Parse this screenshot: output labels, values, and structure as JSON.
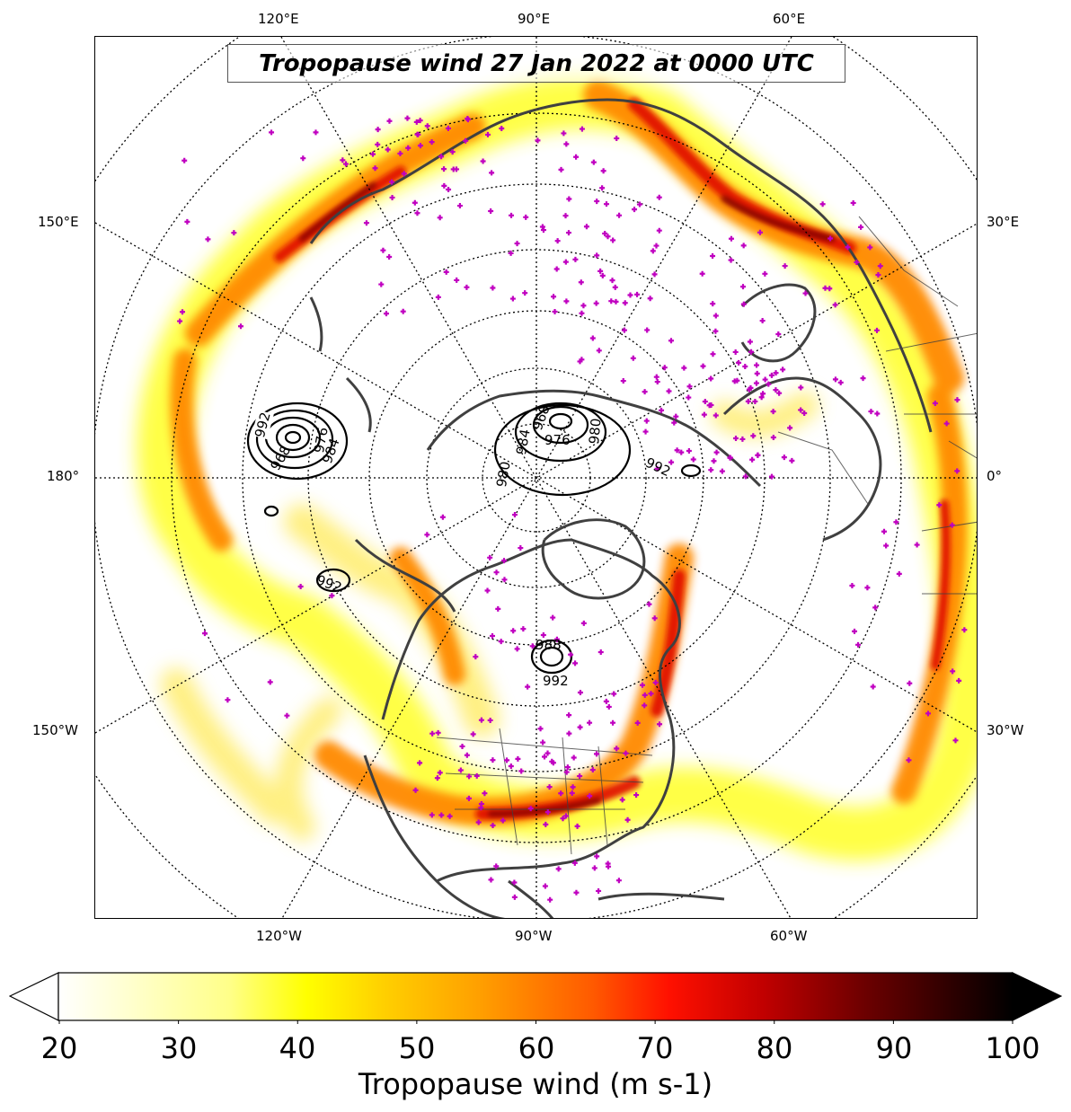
{
  "title": "Tropopause wind 27 Jan 2022 at 0000 UTC",
  "longitude_labels": {
    "top": [
      "120°E",
      "90°E",
      "60°E"
    ],
    "bottom": [
      "120°W",
      "90°W",
      "60°W"
    ],
    "left": [
      "150°E",
      "180°",
      "150°W"
    ],
    "right": [
      "30°E",
      "0°",
      "30°W"
    ]
  },
  "pressure_contour_labels": [
    "992",
    "976",
    "984",
    "968",
    "980",
    "976",
    "984",
    "980",
    "992",
    "992",
    "968",
    "988",
    "992"
  ],
  "colorbar": {
    "min": 20,
    "max": 100,
    "ticks": [
      "20",
      "30",
      "40",
      "50",
      "60",
      "70",
      "80",
      "90",
      "100"
    ],
    "label": "Tropopause wind (m s-1)",
    "colors": [
      "#ffffff",
      "#ffffcc",
      "#ffff66",
      "#ffff00",
      "#ffd700",
      "#ff9f00",
      "#ff6a00",
      "#ff2a00",
      "#e00000",
      "#a00000",
      "#600000",
      "#200000",
      "#000000"
    ]
  },
  "colors": {
    "station_marker": "#c000c0",
    "coastline": "#404040",
    "contour": "#000000"
  }
}
